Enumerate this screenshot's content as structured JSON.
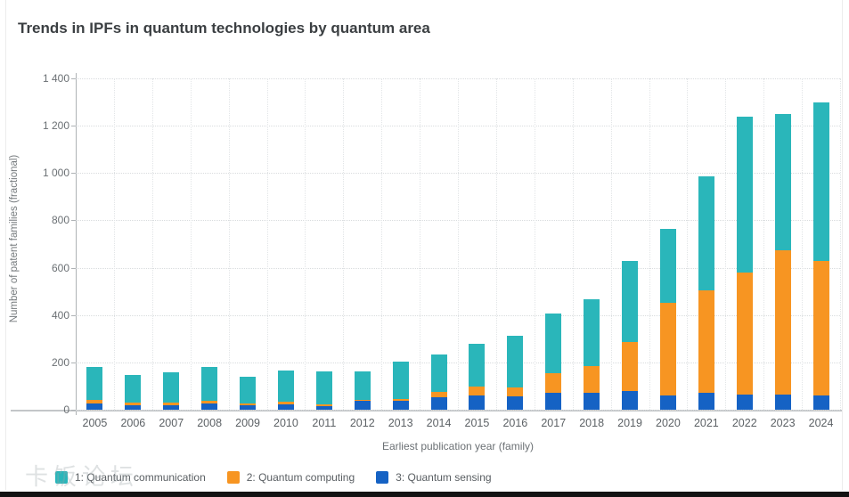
{
  "page": {
    "title": "Trends in IPFs in quantum technologies by quantum area",
    "watermark": "卡饭论坛"
  },
  "chart_data": {
    "type": "bar",
    "stacked": true,
    "title": "Trends in IPFs in quantum technologies by quantum area",
    "xlabel": "Earliest publication year (family)",
    "ylabel": "Number of patent families (fractional)",
    "ylim": [
      0,
      1400
    ],
    "ytick_step": 200,
    "ytick_labels_top_to_bottom": [
      "1 400",
      "1 200",
      "1 000",
      "800",
      "600",
      "400",
      "200",
      "0"
    ],
    "grid": true,
    "legend_position": "bottom-left",
    "categories": [
      "2005",
      "2006",
      "2007",
      "2008",
      "2009",
      "2010",
      "2011",
      "2012",
      "2013",
      "2014",
      "2015",
      "2016",
      "2017",
      "2018",
      "2019",
      "2020",
      "2021",
      "2022",
      "2023",
      "2024"
    ],
    "series": [
      {
        "name": "1: Quantum communication",
        "color": "#2ab6ba",
        "values": [
          140,
          118,
          130,
          143,
          111,
          131,
          140,
          119,
          156,
          160,
          180,
          216,
          250,
          280,
          345,
          315,
          480,
          660,
          575,
          670
        ]
      },
      {
        "name": "2: Quantum computing",
        "color": "#f79522",
        "values": [
          15,
          10,
          9,
          13,
          8,
          10,
          6,
          7,
          8,
          22,
          38,
          38,
          85,
          115,
          205,
          390,
          435,
          515,
          610,
          570
        ]
      },
      {
        "name": "3: Quantum sensing",
        "color": "#1562c4",
        "values": [
          25,
          20,
          20,
          26,
          20,
          24,
          15,
          36,
          38,
          53,
          60,
          58,
          70,
          70,
          80,
          60,
          70,
          65,
          65,
          60
        ]
      }
    ],
    "stack_order_bottom_to_top": [
      "3: Quantum sensing",
      "2: Quantum computing",
      "1: Quantum communication"
    ],
    "totals": [
      180,
      148,
      159,
      182,
      139,
      165,
      161,
      162,
      202,
      235,
      278,
      312,
      405,
      465,
      630,
      765,
      985,
      1240,
      1250,
      1300
    ]
  }
}
